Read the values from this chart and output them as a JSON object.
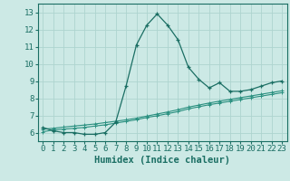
{
  "title": "",
  "xlabel": "Humidex (Indice chaleur)",
  "background_color": "#cce9e5",
  "grid_color": "#aed4cf",
  "line_color": "#1a6e63",
  "line_color2": "#2a9080",
  "xlim": [
    -0.5,
    23.5
  ],
  "ylim": [
    5.5,
    13.5
  ],
  "xticks": [
    0,
    1,
    2,
    3,
    4,
    5,
    6,
    7,
    8,
    9,
    10,
    11,
    12,
    13,
    14,
    15,
    16,
    17,
    18,
    19,
    20,
    21,
    22,
    23
  ],
  "yticks": [
    6,
    7,
    8,
    9,
    10,
    11,
    12,
    13
  ],
  "series1_x": [
    0,
    1,
    2,
    3,
    4,
    5,
    6,
    7,
    8,
    9,
    10,
    11,
    12,
    13,
    14,
    15,
    16,
    17,
    18,
    19,
    20,
    21,
    22,
    23
  ],
  "series1_y": [
    6.3,
    6.1,
    6.0,
    6.0,
    5.9,
    5.9,
    6.0,
    6.6,
    8.7,
    11.1,
    12.25,
    12.9,
    12.25,
    11.4,
    9.8,
    9.1,
    8.6,
    8.9,
    8.4,
    8.4,
    8.5,
    8.7,
    8.9,
    9.0
  ],
  "series2_x": [
    0,
    1,
    2,
    3,
    4,
    5,
    6,
    7,
    8,
    9,
    10,
    11,
    12,
    13,
    14,
    15,
    16,
    17,
    18,
    19,
    20,
    21,
    22,
    23
  ],
  "series2_y": [
    6.05,
    6.15,
    6.2,
    6.25,
    6.3,
    6.38,
    6.45,
    6.55,
    6.65,
    6.75,
    6.88,
    6.98,
    7.1,
    7.22,
    7.38,
    7.5,
    7.62,
    7.72,
    7.82,
    7.92,
    8.02,
    8.12,
    8.22,
    8.32
  ],
  "series3_x": [
    0,
    1,
    2,
    3,
    4,
    5,
    6,
    7,
    8,
    9,
    10,
    11,
    12,
    13,
    14,
    15,
    16,
    17,
    18,
    19,
    20,
    21,
    22,
    23
  ],
  "series3_y": [
    6.2,
    6.25,
    6.32,
    6.38,
    6.44,
    6.5,
    6.58,
    6.66,
    6.74,
    6.84,
    6.96,
    7.08,
    7.2,
    7.33,
    7.48,
    7.6,
    7.72,
    7.83,
    7.93,
    8.03,
    8.13,
    8.23,
    8.33,
    8.43
  ],
  "xlabel_fontsize": 7.5,
  "tick_fontsize": 6.5
}
